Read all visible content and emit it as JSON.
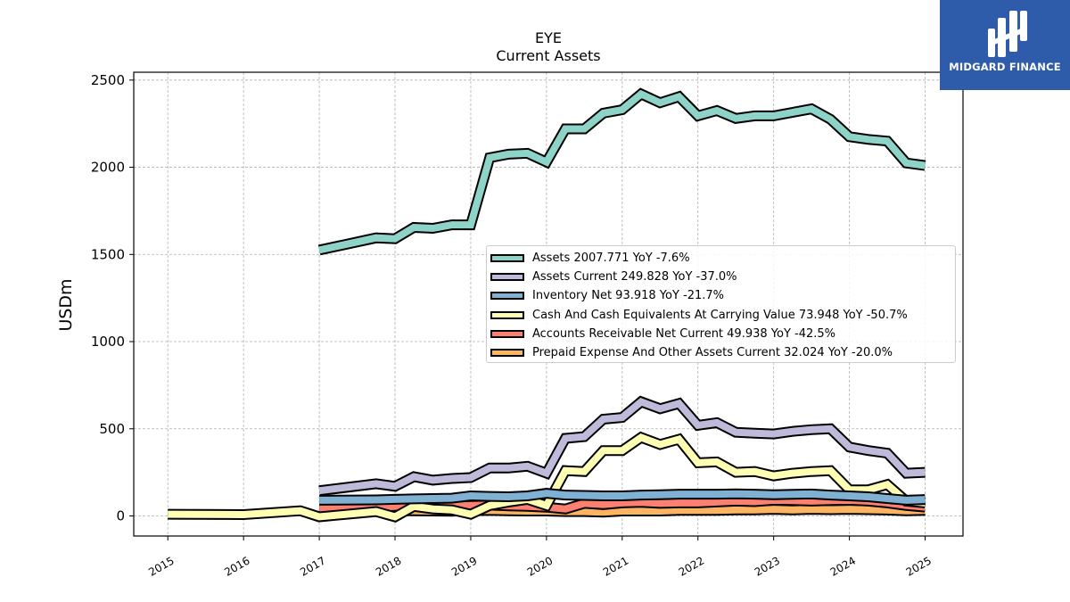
{
  "header": {
    "ticker": "EYE",
    "subtitle": "Current  Assets"
  },
  "brand": {
    "name": "MIDGARD FINANCE",
    "color": "#2f5bab"
  },
  "chart_data": {
    "type": "line",
    "title": "EYE",
    "subtitle": "Current  Assets",
    "ylabel": "USDm",
    "xlabel": "",
    "xlim": [
      2014.55,
      2025.5
    ],
    "ylim": [
      -115,
      2545
    ],
    "x_ticks": [
      "2015",
      "2016",
      "2017",
      "2018",
      "2019",
      "2020",
      "2021",
      "2022",
      "2023",
      "2024",
      "2025"
    ],
    "y_ticks": [
      "0",
      "500",
      "1000",
      "1500",
      "2000",
      "2500"
    ],
    "grid": true,
    "legend_position": "center-right",
    "series": [
      {
        "name": "Assets",
        "legend": "Assets  2007.771 YoY -7.6%",
        "color": "#8dd3c7",
        "x": [
          2017.0,
          2017.75,
          2018.0,
          2018.25,
          2018.5,
          2018.75,
          2019.0,
          2019.25,
          2019.5,
          2019.75,
          2020.0,
          2020.25,
          2020.5,
          2020.75,
          2021.0,
          2021.25,
          2021.5,
          2021.75,
          2022.0,
          2022.25,
          2022.5,
          2022.75,
          2023.0,
          2023.25,
          2023.5,
          2023.75,
          2024.0,
          2024.25,
          2024.5,
          2024.75,
          2025.0
        ],
        "y": [
          1525,
          1595,
          1590,
          1655,
          1650,
          1670,
          1670,
          2055,
          2075,
          2080,
          2030,
          2220,
          2220,
          2310,
          2330,
          2420,
          2370,
          2405,
          2295,
          2325,
          2280,
          2295,
          2295,
          2315,
          2335,
          2275,
          2175,
          2160,
          2150,
          2025,
          2010
        ]
      },
      {
        "name": "Assets Current",
        "legend": "Assets Current  249.828 YoY -37.0%",
        "color": "#bebada",
        "x": [
          2017.0,
          2017.75,
          2018.0,
          2018.25,
          2018.5,
          2018.75,
          2019.0,
          2019.25,
          2019.5,
          2019.75,
          2020.0,
          2020.25,
          2020.5,
          2020.75,
          2021.0,
          2021.25,
          2021.5,
          2021.75,
          2022.0,
          2022.25,
          2022.5,
          2022.75,
          2023.0,
          2023.25,
          2023.5,
          2023.75,
          2024.0,
          2024.25,
          2024.5,
          2024.75,
          2025.0
        ],
        "y": [
          145,
          185,
          170,
          225,
          205,
          215,
          220,
          275,
          275,
          285,
          245,
          445,
          455,
          555,
          565,
          655,
          615,
          645,
          520,
          535,
          480,
          475,
          470,
          485,
          495,
          500,
          395,
          375,
          360,
          245,
          250
        ]
      },
      {
        "name": "Inventory Net",
        "legend": "Inventory Net  93.918 YoY -21.7%",
        "color": "#80b1d3",
        "x": [
          2017.0,
          2017.75,
          2018.0,
          2018.25,
          2018.5,
          2018.75,
          2019.0,
          2019.25,
          2019.5,
          2019.75,
          2020.0,
          2020.25,
          2020.5,
          2020.75,
          2021.0,
          2021.25,
          2021.5,
          2021.75,
          2022.0,
          2022.25,
          2022.5,
          2022.75,
          2023.0,
          2023.25,
          2023.5,
          2023.75,
          2024.0,
          2024.25,
          2024.5,
          2024.75,
          2025.0
        ],
        "y": [
          90,
          92,
          95,
          98,
          100,
          102,
          115,
          112,
          110,
          115,
          130,
          120,
          118,
          115,
          115,
          120,
          122,
          125,
          125,
          125,
          127,
          125,
          122,
          124,
          126,
          120,
          115,
          110,
          100,
          90,
          94
        ]
      },
      {
        "name": "Cash And Cash Equivalents At Carrying Value",
        "legend": "Cash And Cash Equivalents At Carrying Value  73.948 YoY -50.7%",
        "color": "#ffffb3",
        "x": [
          2015.0,
          2016.0,
          2016.75,
          2017.0,
          2017.75,
          2018.0,
          2018.25,
          2018.5,
          2018.75,
          2019.0,
          2019.25,
          2019.5,
          2019.75,
          2020.0,
          2020.25,
          2020.5,
          2020.75,
          2021.0,
          2021.25,
          2021.5,
          2021.75,
          2022.0,
          2022.25,
          2022.5,
          2022.75,
          2023.0,
          2023.25,
          2023.5,
          2023.75,
          2024.0,
          2024.25,
          2024.5,
          2024.75,
          2025.0
        ],
        "y": [
          10,
          8,
          30,
          -5,
          25,
          -5,
          55,
          40,
          35,
          10,
          60,
          80,
          95,
          60,
          260,
          255,
          375,
          375,
          450,
          410,
          440,
          305,
          310,
          250,
          255,
          230,
          245,
          255,
          260,
          150,
          150,
          180,
          85,
          75
        ]
      },
      {
        "name": "Accounts Receivable Net Current",
        "legend": "Accounts Receivable Net Current  49.938 YoY -42.5%",
        "color": "#fb8072",
        "x": [
          2017.0,
          2017.75,
          2018.0,
          2018.25,
          2018.5,
          2018.75,
          2019.0,
          2019.25,
          2019.5,
          2019.75,
          2020.0,
          2020.25,
          2020.5,
          2020.75,
          2021.0,
          2021.25,
          2021.5,
          2021.75,
          2022.0,
          2022.25,
          2022.5,
          2022.75,
          2023.0,
          2023.25,
          2023.5,
          2023.75,
          2024.0,
          2024.25,
          2024.5,
          2024.75,
          2025.0
        ],
        "y": [
          45,
          50,
          55,
          60,
          58,
          55,
          60,
          62,
          58,
          55,
          50,
          40,
          72,
          65,
          75,
          78,
          72,
          75,
          75,
          80,
          85,
          82,
          90,
          88,
          85,
          88,
          90,
          85,
          75,
          60,
          50
        ]
      },
      {
        "name": "Prepaid Expense And Other Assets Current",
        "legend": "Prepaid Expense And Other Assets Current  32.024 YoY -20.0%",
        "color": "#fdb462",
        "x": [
          2017.0,
          2017.75,
          2018.0,
          2018.25,
          2018.5,
          2018.75,
          2019.0,
          2019.25,
          2019.5,
          2019.75,
          2020.0,
          2020.25,
          2020.5,
          2020.75,
          2021.0,
          2021.25,
          2021.5,
          2021.75,
          2022.0,
          2022.25,
          2022.5,
          2022.75,
          2023.0,
          2023.25,
          2023.5,
          2023.75,
          2024.0,
          2024.25,
          2024.5,
          2024.75,
          2025.0
        ],
        "y": [
          25,
          28,
          30,
          30,
          28,
          27,
          30,
          32,
          30,
          28,
          28,
          25,
          25,
          22,
          28,
          28,
          28,
          32,
          32,
          32,
          35,
          35,
          38,
          35,
          38,
          36,
          38,
          36,
          34,
          30,
          32
        ]
      }
    ]
  }
}
